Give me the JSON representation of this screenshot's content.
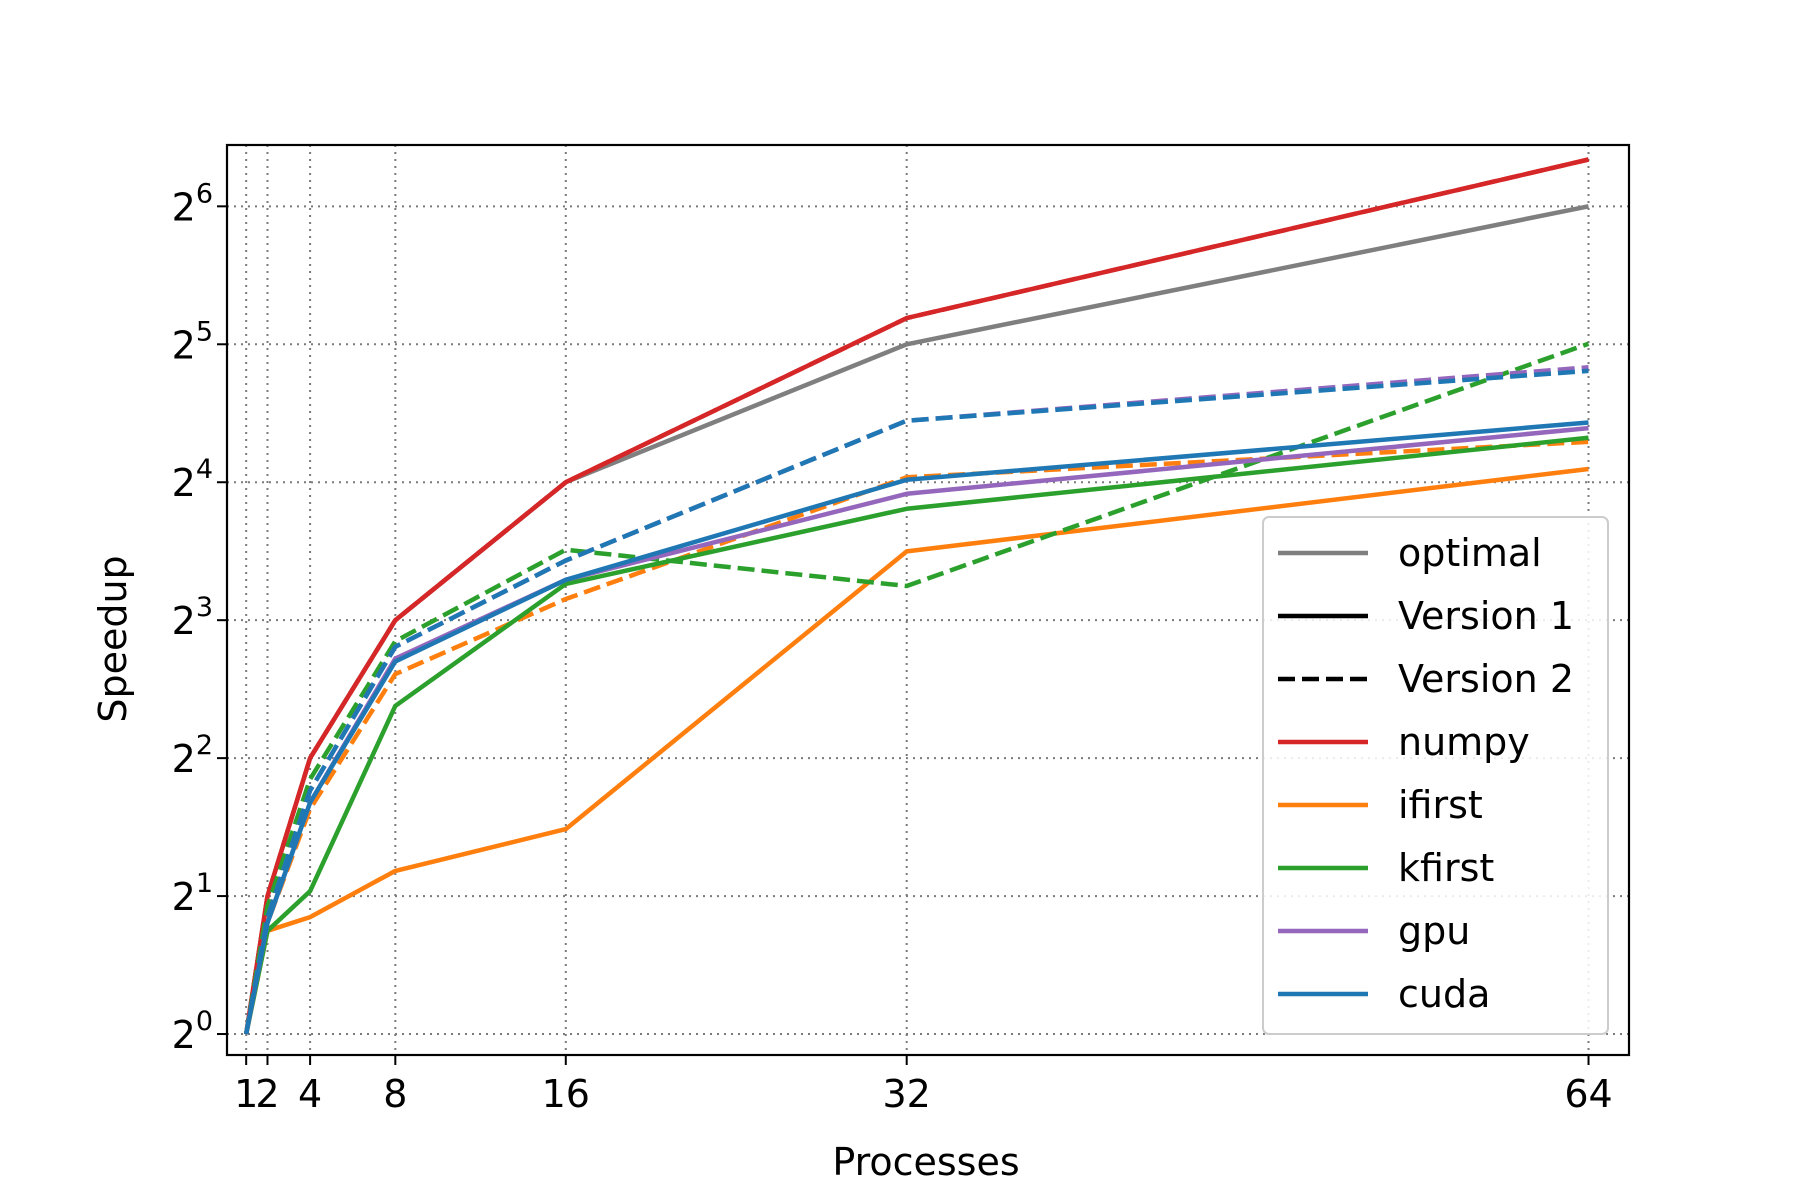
{
  "chart_data": {
    "type": "line",
    "xlabel": "Processes",
    "ylabel": "Speedup",
    "x_scale": "linear",
    "y_scale": "log2",
    "x_ticks": [
      1,
      2,
      4,
      8,
      16,
      32,
      64
    ],
    "x_tick_labels": [
      "1",
      "2",
      "4",
      "8",
      "16",
      "32",
      "64"
    ],
    "y_ticks": [
      1,
      2,
      4,
      8,
      16,
      32,
      64
    ],
    "y_tick_labels": [
      {
        "base": "2",
        "exp": "0"
      },
      {
        "base": "2",
        "exp": "1"
      },
      {
        "base": "2",
        "exp": "2"
      },
      {
        "base": "2",
        "exp": "3"
      },
      {
        "base": "2",
        "exp": "4"
      },
      {
        "base": "2",
        "exp": "5"
      },
      {
        "base": "2",
        "exp": "6"
      }
    ],
    "xlim": [
      0.1,
      65.9
    ],
    "ylim": [
      0.9,
      87.1
    ],
    "grid": true,
    "grid_style": "dotted",
    "legend_position": "lower right",
    "x": [
      1,
      2,
      4,
      8,
      16,
      32,
      64
    ],
    "series": [
      {
        "name": "optimal",
        "style": "solid",
        "color": "#7f7f7f",
        "values": [
          1,
          2,
          4,
          8,
          16,
          32,
          64
        ]
      },
      {
        "name": "numpy",
        "style": "solid",
        "color": "#d62728",
        "values": [
          1,
          2,
          4,
          8,
          16,
          36.5,
          81
        ]
      },
      {
        "name": "numpy",
        "style": "dashed",
        "color": "#d62728",
        "values": [
          1,
          2,
          4,
          8,
          16,
          36.5,
          81
        ]
      },
      {
        "name": "ifirst",
        "style": "solid",
        "color": "#ff7f0e",
        "values": [
          1,
          1.68,
          1.8,
          2.27,
          2.8,
          11.3,
          17.1
        ]
      },
      {
        "name": "ifirst",
        "style": "dashed",
        "color": "#ff7f0e",
        "values": [
          1,
          1.75,
          3.1,
          6.1,
          8.9,
          16.4,
          19.6
        ]
      },
      {
        "name": "kfirst",
        "style": "solid",
        "color": "#2ca02c",
        "values": [
          1,
          1.68,
          2.05,
          5.2,
          9.6,
          14.0,
          20.0
        ]
      },
      {
        "name": "kfirst",
        "style": "dashed",
        "color": "#2ca02c",
        "values": [
          1,
          1.9,
          3.6,
          7.2,
          11.4,
          9.5,
          32.1
        ]
      },
      {
        "name": "gpu",
        "style": "solid",
        "color": "#9467bd",
        "values": [
          1,
          1.75,
          3.2,
          6.6,
          9.8,
          15.1,
          21.0
        ]
      },
      {
        "name": "gpu",
        "style": "dashed",
        "color": "#9467bd",
        "values": [
          1,
          1.8,
          3.4,
          7.0,
          10.8,
          21.8,
          28.5
        ]
      },
      {
        "name": "cuda",
        "style": "solid",
        "color": "#1f77b4",
        "values": [
          1,
          1.75,
          3.2,
          6.5,
          9.8,
          16.2,
          21.6
        ]
      },
      {
        "name": "cuda",
        "style": "dashed",
        "color": "#1f77b4",
        "values": [
          1,
          1.8,
          3.4,
          7.0,
          10.8,
          21.8,
          28.0
        ]
      }
    ],
    "legend": [
      {
        "label": "optimal",
        "style": "solid",
        "color": "#7f7f7f"
      },
      {
        "label": "Version 1",
        "style": "solid",
        "color": "#000000"
      },
      {
        "label": "Version 2",
        "style": "dashed",
        "color": "#000000"
      },
      {
        "label": "numpy",
        "style": "solid",
        "color": "#d62728"
      },
      {
        "label": "ifirst",
        "style": "solid",
        "color": "#ff7f0e"
      },
      {
        "label": "kfirst",
        "style": "solid",
        "color": "#2ca02c"
      },
      {
        "label": "gpu",
        "style": "solid",
        "color": "#9467bd"
      },
      {
        "label": "cuda",
        "style": "solid",
        "color": "#1f77b4"
      }
    ]
  }
}
